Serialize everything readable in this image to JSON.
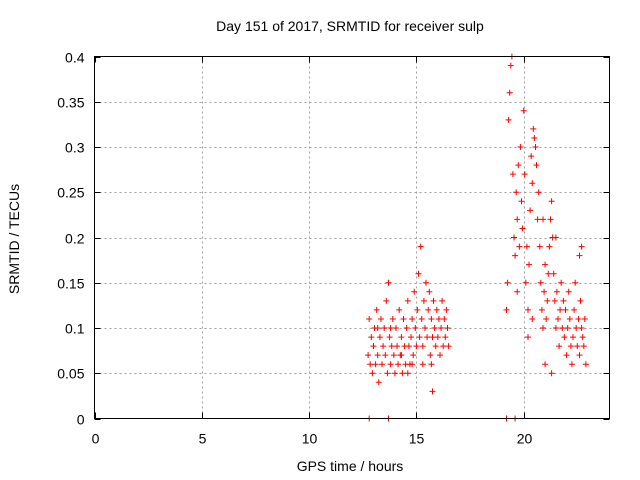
{
  "chart_data": {
    "type": "scatter",
    "title": "Day 151 of 2017, SRMTID for receiver sulp",
    "xlabel": "GPS time / hours",
    "ylabel": "SRMTID / TECUs",
    "xlim": [
      0,
      24
    ],
    "ylim": [
      0,
      0.4
    ],
    "xticks": [
      0,
      5,
      10,
      15,
      20
    ],
    "xtick_labels": [
      "0",
      "5",
      "10",
      "15",
      "20"
    ],
    "yticks": [
      0,
      0.05,
      0.1,
      0.15,
      0.2,
      0.25,
      0.3,
      0.35,
      0.4
    ],
    "ytick_labels": [
      "0",
      "0.05",
      "0.1",
      "0.15",
      "0.2",
      "0.25",
      "0.3",
      "0.35",
      "0.4"
    ],
    "grid": true,
    "marker": "plus",
    "color": "#ff0000",
    "series": [
      {
        "name": "SRMTID",
        "points": [
          [
            12.75,
            0.07
          ],
          [
            12.8,
            0.11
          ],
          [
            12.85,
            0.06
          ],
          [
            12.9,
            0.09
          ],
          [
            12.95,
            0.05
          ],
          [
            13.0,
            0.08
          ],
          [
            13.05,
            0.1
          ],
          [
            13.1,
            0.06
          ],
          [
            13.15,
            0.12
          ],
          [
            13.2,
            0.07
          ],
          [
            13.25,
            0.04
          ],
          [
            13.3,
            0.09
          ],
          [
            13.35,
            0.11
          ],
          [
            13.4,
            0.06
          ],
          [
            13.45,
            0.08
          ],
          [
            13.5,
            0.1
          ],
          [
            13.55,
            0.07
          ],
          [
            13.6,
            0.13
          ],
          [
            13.65,
            0.05
          ],
          [
            13.7,
            0.15
          ],
          [
            13.75,
            0.09
          ],
          [
            13.8,
            0.06
          ],
          [
            13.85,
            0.08
          ],
          [
            13.9,
            0.11
          ],
          [
            13.95,
            0.07
          ],
          [
            14.0,
            0.05
          ],
          [
            14.05,
            0.1
          ],
          [
            14.1,
            0.08
          ],
          [
            14.15,
            0.06
          ],
          [
            14.2,
            0.12
          ],
          [
            14.25,
            0.07
          ],
          [
            14.3,
            0.09
          ],
          [
            14.35,
            0.05
          ],
          [
            14.4,
            0.11
          ],
          [
            14.45,
            0.08
          ],
          [
            14.5,
            0.06
          ],
          [
            14.55,
            0.1
          ],
          [
            14.6,
            0.13
          ],
          [
            14.65,
            0.08
          ],
          [
            14.7,
            0.06
          ],
          [
            14.75,
            0.09
          ],
          [
            14.8,
            0.11
          ],
          [
            14.85,
            0.07
          ],
          [
            14.9,
            0.14
          ],
          [
            14.95,
            0.1
          ],
          [
            15.0,
            0.08
          ],
          [
            15.05,
            0.12
          ],
          [
            15.1,
            0.16
          ],
          [
            15.15,
            0.09
          ],
          [
            15.2,
            0.19
          ],
          [
            15.25,
            0.11
          ],
          [
            15.3,
            0.08
          ],
          [
            15.35,
            0.13
          ],
          [
            15.4,
            0.1
          ],
          [
            15.45,
            0.15
          ],
          [
            15.5,
            0.09
          ],
          [
            15.55,
            0.12
          ],
          [
            15.6,
            0.14
          ],
          [
            15.65,
            0.07
          ],
          [
            15.7,
            0.11
          ],
          [
            15.75,
            0.09
          ],
          [
            15.8,
            0.13
          ],
          [
            15.85,
            0.1
          ],
          [
            15.9,
            0.08
          ],
          [
            15.95,
            0.12
          ],
          [
            16.0,
            0.09
          ],
          [
            16.05,
            0.11
          ],
          [
            16.1,
            0.07
          ],
          [
            16.15,
            0.1
          ],
          [
            16.2,
            0.13
          ],
          [
            16.25,
            0.08
          ],
          [
            16.3,
            0.11
          ],
          [
            16.35,
            0.09
          ],
          [
            16.4,
            0.12
          ],
          [
            16.45,
            0.1
          ],
          [
            16.5,
            0.08
          ],
          [
            14.6,
            0.05
          ],
          [
            14.8,
            0.06
          ],
          [
            15.3,
            0.06
          ],
          [
            15.7,
            0.06
          ],
          [
            15.75,
            0.03
          ],
          [
            13.2,
            0.1
          ],
          [
            13.8,
            0.1
          ],
          [
            14.3,
            0.07
          ],
          [
            19.2,
            0.12
          ],
          [
            19.25,
            0.15
          ],
          [
            19.3,
            0.33
          ],
          [
            19.35,
            0.36
          ],
          [
            19.4,
            0.39
          ],
          [
            19.45,
            0.4
          ],
          [
            19.5,
            0.27
          ],
          [
            19.55,
            0.2
          ],
          [
            19.6,
            0.18
          ],
          [
            19.65,
            0.25
          ],
          [
            19.7,
            0.22
          ],
          [
            19.75,
            0.28
          ],
          [
            19.8,
            0.19
          ],
          [
            19.85,
            0.3
          ],
          [
            19.9,
            0.24
          ],
          [
            19.95,
            0.21
          ],
          [
            20.0,
            0.34
          ],
          [
            20.05,
            0.27
          ],
          [
            20.1,
            0.15
          ],
          [
            20.15,
            0.19
          ],
          [
            20.2,
            0.12
          ],
          [
            20.25,
            0.17
          ],
          [
            20.3,
            0.23
          ],
          [
            20.35,
            0.29
          ],
          [
            20.4,
            0.26
          ],
          [
            20.45,
            0.32
          ],
          [
            20.5,
            0.31
          ],
          [
            20.55,
            0.3
          ],
          [
            20.6,
            0.28
          ],
          [
            20.65,
            0.22
          ],
          [
            20.7,
            0.25
          ],
          [
            20.75,
            0.19
          ],
          [
            20.8,
            0.15
          ],
          [
            20.85,
            0.12
          ],
          [
            20.9,
            0.1
          ],
          [
            20.95,
            0.14
          ],
          [
            21.0,
            0.17
          ],
          [
            21.05,
            0.11
          ],
          [
            21.1,
            0.13
          ],
          [
            21.15,
            0.16
          ],
          [
            21.2,
            0.19
          ],
          [
            21.25,
            0.22
          ],
          [
            21.3,
            0.24
          ],
          [
            21.35,
            0.2
          ],
          [
            21.4,
            0.16
          ],
          [
            21.45,
            0.13
          ],
          [
            21.5,
            0.1
          ],
          [
            21.55,
            0.14
          ],
          [
            21.6,
            0.11
          ],
          [
            21.65,
            0.08
          ],
          [
            21.7,
            0.12
          ],
          [
            21.75,
            0.15
          ],
          [
            21.8,
            0.1
          ],
          [
            21.85,
            0.13
          ],
          [
            21.9,
            0.09
          ],
          [
            21.95,
            0.12
          ],
          [
            22.0,
            0.07
          ],
          [
            22.05,
            0.1
          ],
          [
            22.1,
            0.14
          ],
          [
            22.15,
            0.11
          ],
          [
            22.2,
            0.08
          ],
          [
            22.25,
            0.06
          ],
          [
            22.3,
            0.09
          ],
          [
            22.35,
            0.12
          ],
          [
            22.4,
            0.15
          ],
          [
            22.45,
            0.1
          ],
          [
            22.5,
            0.08
          ],
          [
            22.55,
            0.11
          ],
          [
            22.6,
            0.07
          ],
          [
            22.65,
            0.13
          ],
          [
            22.7,
            0.1
          ],
          [
            22.75,
            0.09
          ],
          [
            22.8,
            0.08
          ],
          [
            22.85,
            0.11
          ],
          [
            22.9,
            0.06
          ],
          [
            19.7,
            0.14
          ],
          [
            20.2,
            0.09
          ],
          [
            20.4,
            0.11
          ],
          [
            21.0,
            0.06
          ],
          [
            21.3,
            0.05
          ],
          [
            22.6,
            0.18
          ],
          [
            22.7,
            0.19
          ],
          [
            21.5,
            0.2
          ],
          [
            20.9,
            0.22
          ],
          [
            12.8,
            0.0
          ],
          [
            13.7,
            0.0
          ],
          [
            19.2,
            0.0
          ],
          [
            19.6,
            0.0
          ]
        ]
      }
    ]
  }
}
